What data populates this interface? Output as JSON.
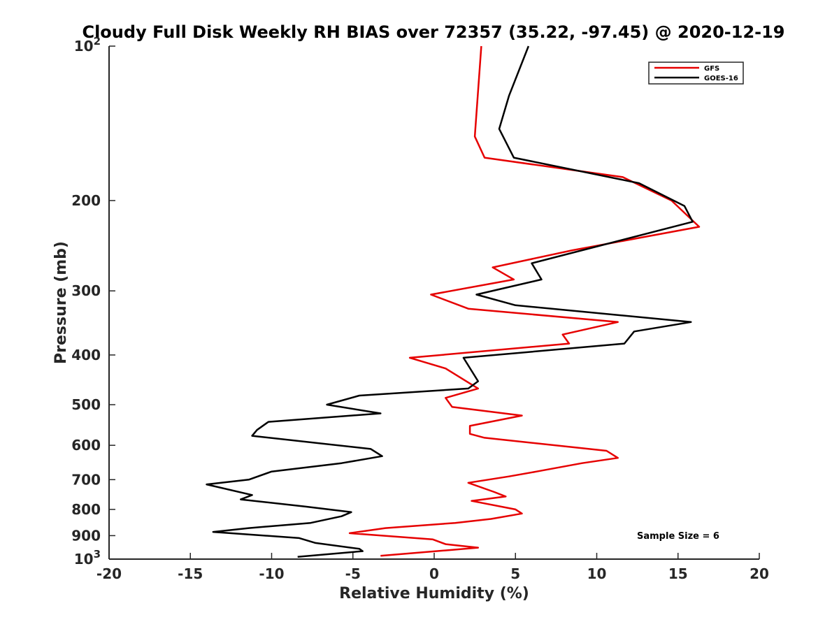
{
  "chart_data": {
    "type": "line",
    "title": "Cloudy Full Disk Weekly RH BIAS over 72357 (35.22, -97.45) @ 2020-12-19",
    "xlabel": "Relative Humidity (%)",
    "ylabel": "Pressure (mb)",
    "xlim": [
      -20,
      20
    ],
    "ylim": [
      100,
      1000
    ],
    "y_scale": "log",
    "y_reversed": true,
    "grid": false,
    "legend_position": "top-right",
    "annotation": "Sample Size = 6",
    "x_ticks": [
      "-20",
      "-15",
      "-10",
      "-5",
      "0",
      "5",
      "10",
      "15",
      "20"
    ],
    "y_ticks": [
      {
        "value": 100,
        "base": "10",
        "exp": "2"
      },
      {
        "value": 200,
        "label": "200"
      },
      {
        "value": 300,
        "label": "300"
      },
      {
        "value": 400,
        "label": "400"
      },
      {
        "value": 500,
        "label": "500"
      },
      {
        "value": 600,
        "label": "600"
      },
      {
        "value": 700,
        "label": "700"
      },
      {
        "value": 800,
        "label": "800"
      },
      {
        "value": 900,
        "label": "900"
      },
      {
        "value": 1000,
        "base": "10",
        "exp": "3"
      }
    ],
    "series": [
      {
        "name": "GFS",
        "color": "#e60000",
        "points": [
          [
            2.9,
            100
          ],
          [
            2.5,
            150
          ],
          [
            3.1,
            165
          ],
          [
            11.6,
            180
          ],
          [
            14.6,
            200
          ],
          [
            16.3,
            225
          ],
          [
            8.5,
            250
          ],
          [
            3.6,
            270
          ],
          [
            4.9,
            285
          ],
          [
            -0.2,
            305
          ],
          [
            2.1,
            325
          ],
          [
            11.3,
            345
          ],
          [
            7.9,
            365
          ],
          [
            8.3,
            380
          ],
          [
            -1.5,
            405
          ],
          [
            0.7,
            425
          ],
          [
            2.7,
            465
          ],
          [
            0.7,
            485
          ],
          [
            1.1,
            505
          ],
          [
            5.4,
            525
          ],
          [
            2.2,
            550
          ],
          [
            2.2,
            570
          ],
          [
            3.1,
            580
          ],
          [
            10.6,
            615
          ],
          [
            11.3,
            635
          ],
          [
            9.1,
            650
          ],
          [
            6.3,
            675
          ],
          [
            4.6,
            690
          ],
          [
            2.1,
            710
          ],
          [
            3.7,
            740
          ],
          [
            4.4,
            755
          ],
          [
            2.3,
            770
          ],
          [
            5.0,
            800
          ],
          [
            5.4,
            815
          ],
          [
            3.5,
            835
          ],
          [
            1.3,
            850
          ],
          [
            -3.0,
            870
          ],
          [
            -5.2,
            890
          ],
          [
            -0.1,
            915
          ],
          [
            0.7,
            935
          ],
          [
            2.7,
            950
          ],
          [
            1.0,
            960
          ],
          [
            -3.3,
            985
          ]
        ]
      },
      {
        "name": "GOES-16",
        "color": "#000000",
        "points": [
          [
            5.8,
            100
          ],
          [
            4.6,
            125
          ],
          [
            4.0,
            145
          ],
          [
            4.9,
            165
          ],
          [
            12.6,
            185
          ],
          [
            15.4,
            205
          ],
          [
            15.9,
            220
          ],
          [
            6.0,
            265
          ],
          [
            6.6,
            285
          ],
          [
            2.6,
            305
          ],
          [
            5.0,
            320
          ],
          [
            15.8,
            345
          ],
          [
            12.3,
            360
          ],
          [
            11.7,
            380
          ],
          [
            1.8,
            405
          ],
          [
            2.7,
            450
          ],
          [
            2.1,
            465
          ],
          [
            -4.6,
            480
          ],
          [
            -6.6,
            500
          ],
          [
            -3.3,
            520
          ],
          [
            -10.2,
            540
          ],
          [
            -10.9,
            560
          ],
          [
            -11.2,
            575
          ],
          [
            -3.9,
            610
          ],
          [
            -3.2,
            630
          ],
          [
            -5.7,
            650
          ],
          [
            -10.0,
            675
          ],
          [
            -11.4,
            700
          ],
          [
            -14.0,
            715
          ],
          [
            -11.2,
            750
          ],
          [
            -11.9,
            765
          ],
          [
            -7.9,
            790
          ],
          [
            -5.1,
            810
          ],
          [
            -5.7,
            825
          ],
          [
            -7.6,
            850
          ],
          [
            -11.4,
            870
          ],
          [
            -13.6,
            885
          ],
          [
            -8.3,
            910
          ],
          [
            -7.3,
            930
          ],
          [
            -4.6,
            955
          ],
          [
            -4.4,
            965
          ],
          [
            -8.4,
            990
          ]
        ]
      }
    ]
  }
}
